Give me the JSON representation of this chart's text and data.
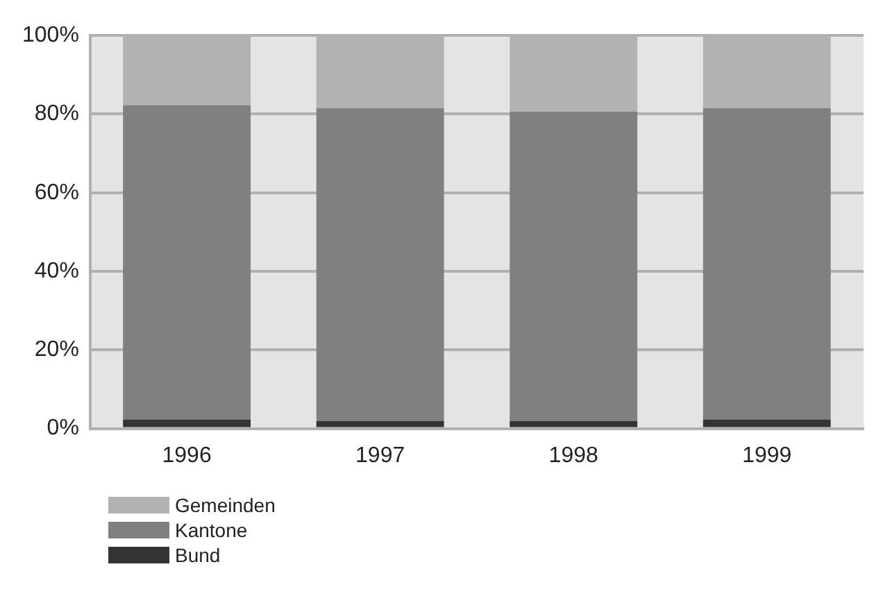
{
  "chart_data": {
    "type": "bar",
    "stacked": true,
    "categories": [
      "1996",
      "1997",
      "1998",
      "1999"
    ],
    "series": [
      {
        "name": "Bund",
        "color": "#333333",
        "values": [
          2.3,
          1.9,
          1.9,
          2.3
        ]
      },
      {
        "name": "Kantone",
        "color": "#808080",
        "values": [
          80.0,
          79.6,
          78.7,
          79.2
        ]
      },
      {
        "name": "Gemeinden",
        "color": "#b2b2b2",
        "values": [
          17.7,
          18.5,
          19.4,
          18.5
        ]
      }
    ],
    "ylim": [
      0,
      100
    ],
    "yticks": [
      {
        "value": 0,
        "label": "0%"
      },
      {
        "value": 20,
        "label": "20%"
      },
      {
        "value": 40,
        "label": "40%"
      },
      {
        "value": 60,
        "label": "60%"
      },
      {
        "value": 80,
        "label": "80%"
      },
      {
        "value": 100,
        "label": "100%"
      }
    ],
    "grid": "y",
    "legend": "bottom left"
  }
}
